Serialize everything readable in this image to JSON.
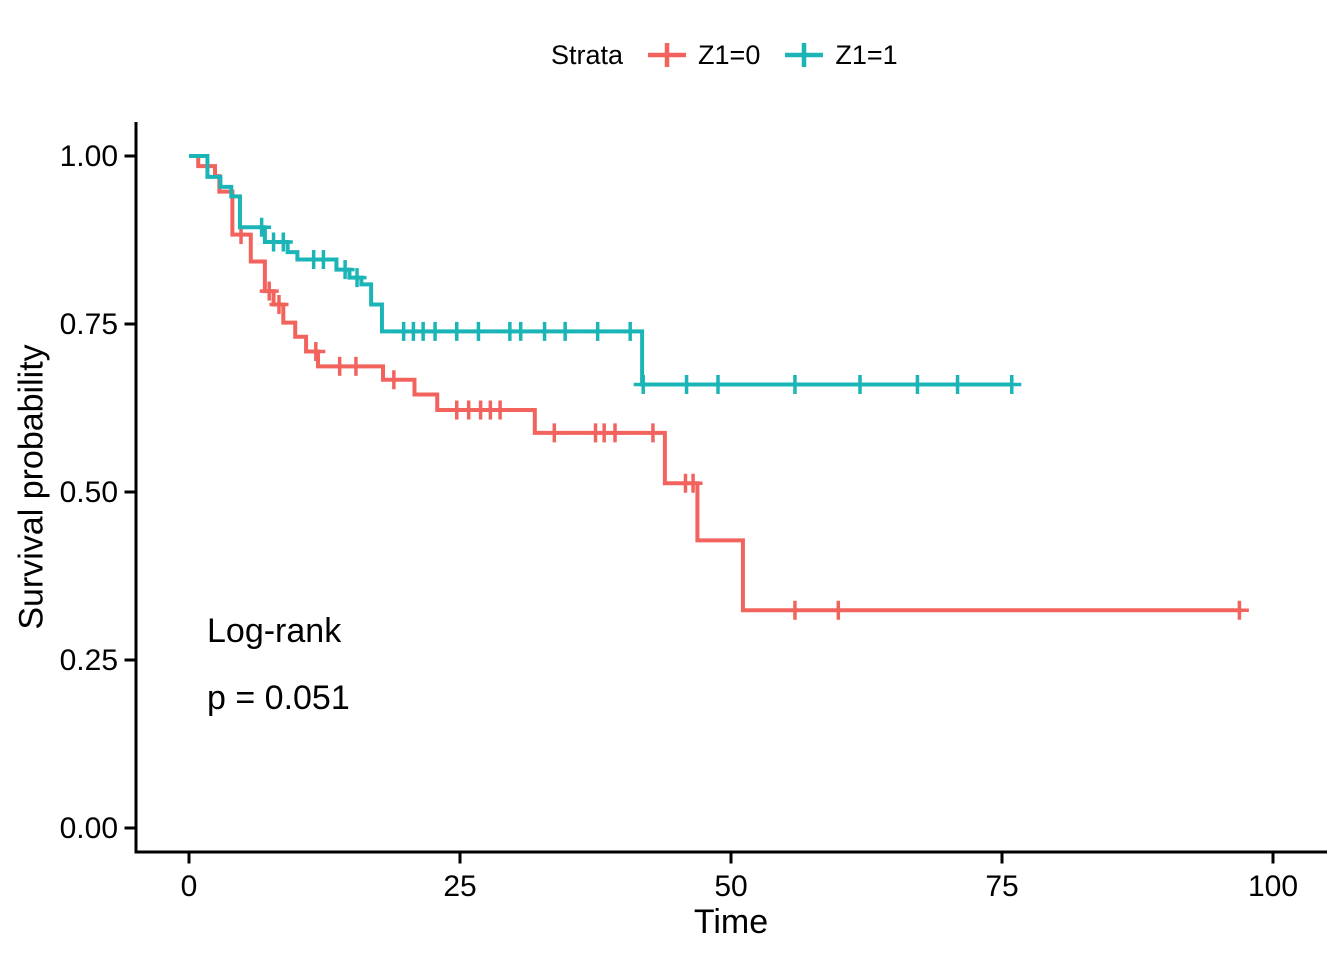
{
  "legend": {
    "title": "Strata",
    "items": [
      {
        "label": "Z1=0",
        "color": "#F2635E"
      },
      {
        "label": "Z1=1",
        "color": "#1BB4B7"
      }
    ]
  },
  "annotation": {
    "line1": "Log-rank",
    "line2": "p = 0.051"
  },
  "chart_data": {
    "type": "line",
    "subtype": "kaplan-meier-survival-step",
    "title": "",
    "xlabel": "Time",
    "ylabel": "Survival probability",
    "xlim": [
      0,
      100
    ],
    "ylim": [
      0,
      1
    ],
    "x_ticks": [
      0,
      25,
      50,
      75,
      100
    ],
    "x_tick_labels": [
      "0",
      "25",
      "50",
      "75",
      "100"
    ],
    "y_ticks": [
      0,
      0.25,
      0.5,
      0.75,
      1
    ],
    "y_tick_labels": [
      "0.00",
      "0.25",
      "0.50",
      "0.75",
      "1.00"
    ],
    "grid": false,
    "legend_position": "top",
    "legend_title": "Strata",
    "annotation_text": [
      "Log-rank",
      "p = 0.051"
    ],
    "series": [
      {
        "name": "Z1=0",
        "color": "#F2635E",
        "steps": [
          [
            0,
            1.0
          ],
          [
            0.85,
            0.985
          ],
          [
            2.4,
            0.97
          ],
          [
            2.8,
            0.947
          ],
          [
            4.0,
            0.883
          ],
          [
            5.7,
            0.843
          ],
          [
            7.0,
            0.799
          ],
          [
            7.8,
            0.779
          ],
          [
            8.7,
            0.752
          ],
          [
            9.8,
            0.731
          ],
          [
            10.8,
            0.709
          ],
          [
            11.9,
            0.687
          ],
          [
            17.9,
            0.667
          ],
          [
            20.8,
            0.645
          ],
          [
            22.9,
            0.622
          ],
          [
            31.9,
            0.588
          ],
          [
            43.9,
            0.513
          ],
          [
            46.9,
            0.428
          ],
          [
            51.1,
            0.324
          ]
        ],
        "censor_times": [
          4.8,
          7.4,
          8.3,
          11.7,
          13.9,
          15.4,
          18.9,
          24.7,
          25.8,
          26.9,
          27.8,
          28.7,
          33.7,
          37.5,
          38.3,
          39.3,
          42.8,
          45.8,
          46.5,
          55.9,
          59.9,
          96.9
        ],
        "end_time": 97.1
      },
      {
        "name": "Z1=1",
        "color": "#1BB4B7",
        "steps": [
          [
            0,
            1.0
          ],
          [
            1.7,
            0.969
          ],
          [
            2.9,
            0.954
          ],
          [
            3.9,
            0.94
          ],
          [
            4.7,
            0.894
          ],
          [
            7.0,
            0.872
          ],
          [
            9.1,
            0.857
          ],
          [
            10.0,
            0.846
          ],
          [
            13.6,
            0.831
          ],
          [
            14.8,
            0.819
          ],
          [
            15.9,
            0.809
          ],
          [
            16.8,
            0.779
          ],
          [
            17.8,
            0.739
          ],
          [
            41.8,
            0.66
          ]
        ],
        "censor_times": [
          6.7,
          7.8,
          8.7,
          11.5,
          12.4,
          14.4,
          15.5,
          19.8,
          20.7,
          21.6,
          22.7,
          24.7,
          26.7,
          29.6,
          30.6,
          32.8,
          34.7,
          37.7,
          40.7,
          41.9,
          45.9,
          48.8,
          55.9,
          61.9,
          67.2,
          70.9,
          75.9
        ],
        "end_time": 76.0
      }
    ]
  }
}
